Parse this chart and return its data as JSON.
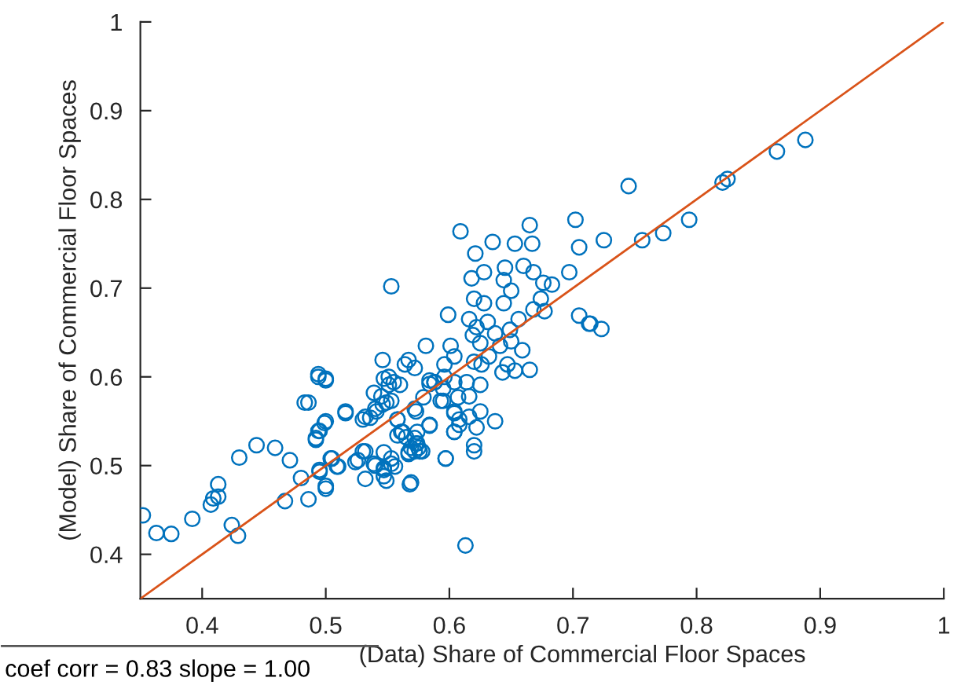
{
  "chart_data": {
    "type": "scatter",
    "xlabel": "(Data) Share of Commercial Floor Spaces",
    "ylabel": "(Model) Share of Commercial Floor Spaces",
    "annotations": [
      "coef corr = 0.83 slope = 1.00"
    ],
    "xlim": [
      0.35,
      1
    ],
    "ylim": [
      0.35,
      1
    ],
    "xticks": [
      0.4,
      0.5,
      0.6,
      0.7,
      0.8,
      0.9,
      1
    ],
    "yticks": [
      0.4,
      0.5,
      0.6,
      0.7,
      0.8,
      0.9,
      1
    ],
    "grid": false,
    "series": [
      {
        "color": "#0072bd",
        "marker": "circle",
        "x": [
          0.352,
          0.363,
          0.375,
          0.392,
          0.407,
          0.409,
          0.413,
          0.413,
          0.424,
          0.429,
          0.43,
          0.444,
          0.459,
          0.471,
          0.48,
          0.467,
          0.486,
          0.495,
          0.5,
          0.504,
          0.509,
          0.492,
          0.495,
          0.499,
          0.483,
          0.516,
          0.494,
          0.5,
          0.524,
          0.53,
          0.539,
          0.547,
          0.549,
          0.553,
          0.556,
          0.568,
          0.53,
          0.536,
          0.541,
          0.546,
          0.539,
          0.551,
          0.547,
          0.558,
          0.561,
          0.565,
          0.572,
          0.572,
          0.584,
          0.567,
          0.572,
          0.575,
          0.578,
          0.573,
          0.597,
          0.604,
          0.604,
          0.608,
          0.593,
          0.595,
          0.588,
          0.613,
          0.584,
          0.609,
          0.621,
          0.635,
          0.653,
          0.665,
          0.667,
          0.702,
          0.705,
          0.725,
          0.553,
          0.618,
          0.628,
          0.644,
          0.65,
          0.645,
          0.66,
          0.668,
          0.676,
          0.683,
          0.697,
          0.599,
          0.62,
          0.628,
          0.644,
          0.656,
          0.674,
          0.677,
          0.668,
          0.705,
          0.714,
          0.723,
          0.616,
          0.622,
          0.631,
          0.637,
          0.649,
          0.65,
          0.641,
          0.625,
          0.619,
          0.581,
          0.601,
          0.604,
          0.596,
          0.62,
          0.626,
          0.632,
          0.643,
          0.647,
          0.659,
          0.665,
          0.653,
          0.546,
          0.564,
          0.567,
          0.572,
          0.551,
          0.56,
          0.555,
          0.588,
          0.596,
          0.604,
          0.614,
          0.625,
          0.584,
          0.494,
          0.5,
          0.486,
          0.516,
          0.545,
          0.553,
          0.549,
          0.54,
          0.532,
          0.5,
          0.494,
          0.492,
          0.505,
          0.51,
          0.495,
          0.526,
          0.532,
          0.54,
          0.547,
          0.553,
          0.547,
          0.558,
          0.562,
          0.574,
          0.569,
          0.576,
          0.567,
          0.574,
          0.584,
          0.573,
          0.558,
          0.579,
          0.595,
          0.607,
          0.616,
          0.604,
          0.608,
          0.616,
          0.622,
          0.604,
          0.637,
          0.625,
          0.597,
          0.62,
          0.62,
          0.569,
          0.547,
          0.532,
          0.5,
          0.745,
          0.756,
          0.773,
          0.794,
          0.821,
          0.825,
          0.865,
          0.888,
          0.713
        ],
        "values": [
          0.444,
          0.424,
          0.423,
          0.44,
          0.456,
          0.463,
          0.465,
          0.479,
          0.433,
          0.421,
          0.509,
          0.523,
          0.52,
          0.506,
          0.486,
          0.46,
          0.462,
          0.495,
          0.474,
          0.508,
          0.499,
          0.529,
          0.539,
          0.548,
          0.571,
          0.561,
          0.6,
          0.596,
          0.504,
          0.516,
          0.502,
          0.495,
          0.483,
          0.508,
          0.499,
          0.479,
          0.552,
          0.554,
          0.561,
          0.569,
          0.582,
          0.591,
          0.598,
          0.552,
          0.538,
          0.532,
          0.531,
          0.564,
          0.545,
          0.513,
          0.516,
          0.52,
          0.516,
          0.525,
          0.508,
          0.538,
          0.559,
          0.546,
          0.573,
          0.587,
          0.594,
          0.41,
          0.592,
          0.764,
          0.739,
          0.752,
          0.75,
          0.771,
          0.75,
          0.777,
          0.746,
          0.754,
          0.702,
          0.711,
          0.718,
          0.709,
          0.697,
          0.723,
          0.725,
          0.718,
          0.706,
          0.704,
          0.718,
          0.67,
          0.688,
          0.683,
          0.683,
          0.665,
          0.688,
          0.674,
          0.676,
          0.669,
          0.66,
          0.654,
          0.665,
          0.656,
          0.662,
          0.649,
          0.653,
          0.64,
          0.635,
          0.638,
          0.647,
          0.635,
          0.635,
          0.623,
          0.614,
          0.617,
          0.614,
          0.623,
          0.605,
          0.614,
          0.63,
          0.608,
          0.607,
          0.619,
          0.614,
          0.619,
          0.61,
          0.6,
          0.591,
          0.594,
          0.594,
          0.6,
          0.594,
          0.594,
          0.591,
          0.596,
          0.603,
          0.598,
          0.571,
          0.559,
          0.578,
          0.573,
          0.571,
          0.564,
          0.555,
          0.55,
          0.539,
          0.531,
          0.508,
          0.499,
          0.493,
          0.506,
          0.516,
          0.5,
          0.497,
          0.502,
          0.515,
          0.534,
          0.538,
          0.538,
          0.52,
          0.516,
          0.515,
          0.525,
          0.546,
          0.561,
          0.552,
          0.577,
          0.573,
          0.577,
          0.578,
          0.561,
          0.552,
          0.555,
          0.543,
          0.538,
          0.55,
          0.561,
          0.508,
          0.523,
          0.516,
          0.481,
          0.488,
          0.485,
          0.477,
          0.815,
          0.754,
          0.762,
          0.777,
          0.819,
          0.823,
          0.854,
          0.867,
          0.66
        ]
      },
      {
        "type": "line",
        "color": "#d95319",
        "marker": "none",
        "x": [
          0.35,
          1
        ],
        "values": [
          0.35,
          1
        ]
      }
    ]
  }
}
